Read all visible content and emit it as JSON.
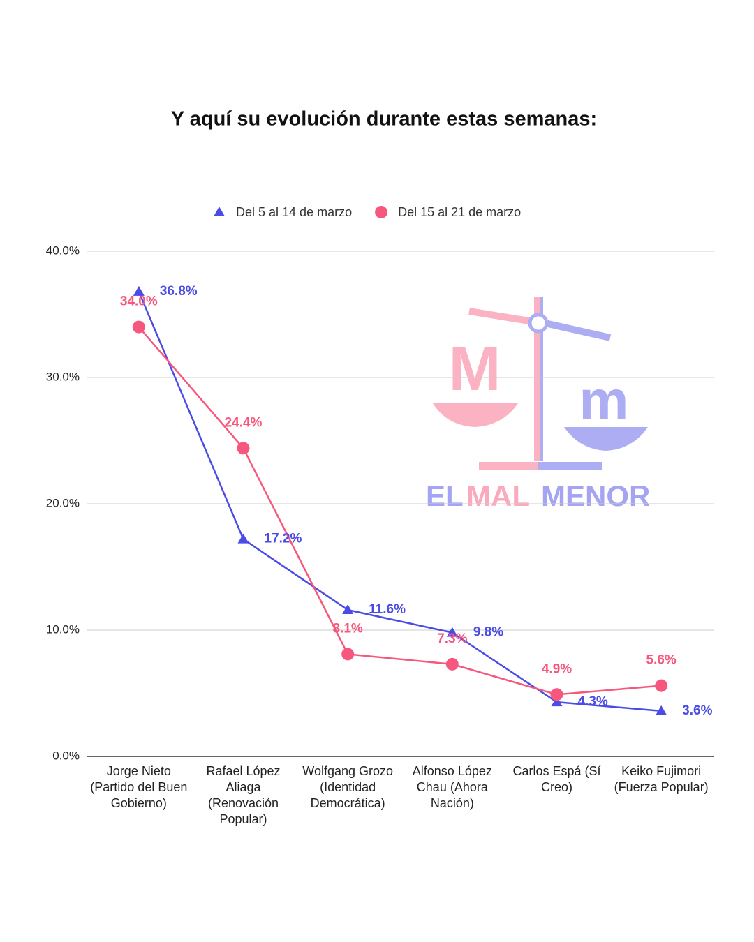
{
  "chart_data": {
    "type": "line",
    "title": "Y aquí su evolución durante estas semanas:",
    "categories": [
      "Jorge Nieto (Partido del Buen Gobierno)",
      "Rafael López Aliaga (Renovación Popular)",
      "Wolfgang Grozo (Identidad Democrática)",
      "Alfonso López Chau (Ahora Nación)",
      "Carlos Espá (Sí Creo)",
      "Keiko Fujimori (Fuerza Popular)"
    ],
    "series": [
      {
        "name": "Del 5 al 14 de marzo",
        "color": "#4b4ce6",
        "marker": "triangle",
        "values": [
          36.8,
          17.2,
          11.6,
          9.8,
          4.3,
          3.6
        ],
        "value_labels": [
          "36.8%",
          "17.2%",
          "11.6%",
          "9.8%",
          "4.3%",
          "3.6%"
        ]
      },
      {
        "name": "Del 15 al 21 de marzo",
        "color": "#f7577c",
        "marker": "circle",
        "values": [
          34.0,
          24.4,
          8.1,
          7.3,
          4.9,
          5.6
        ],
        "value_labels": [
          "34.0%",
          "24.4%",
          "8.1%",
          "7.3%",
          "4.9%",
          "5.6%"
        ]
      }
    ],
    "ylim": [
      0,
      40
    ],
    "yticks": [
      {
        "value": 0,
        "label": "0.0%"
      },
      {
        "value": 10,
        "label": "10.0%"
      },
      {
        "value": 20,
        "label": "20.0%"
      },
      {
        "value": 30,
        "label": "30.0%"
      },
      {
        "value": 40,
        "label": "40.0%"
      }
    ],
    "grid": true,
    "legend": "top"
  },
  "logo": {
    "words": [
      "EL",
      "MAL",
      "MENOR"
    ]
  }
}
